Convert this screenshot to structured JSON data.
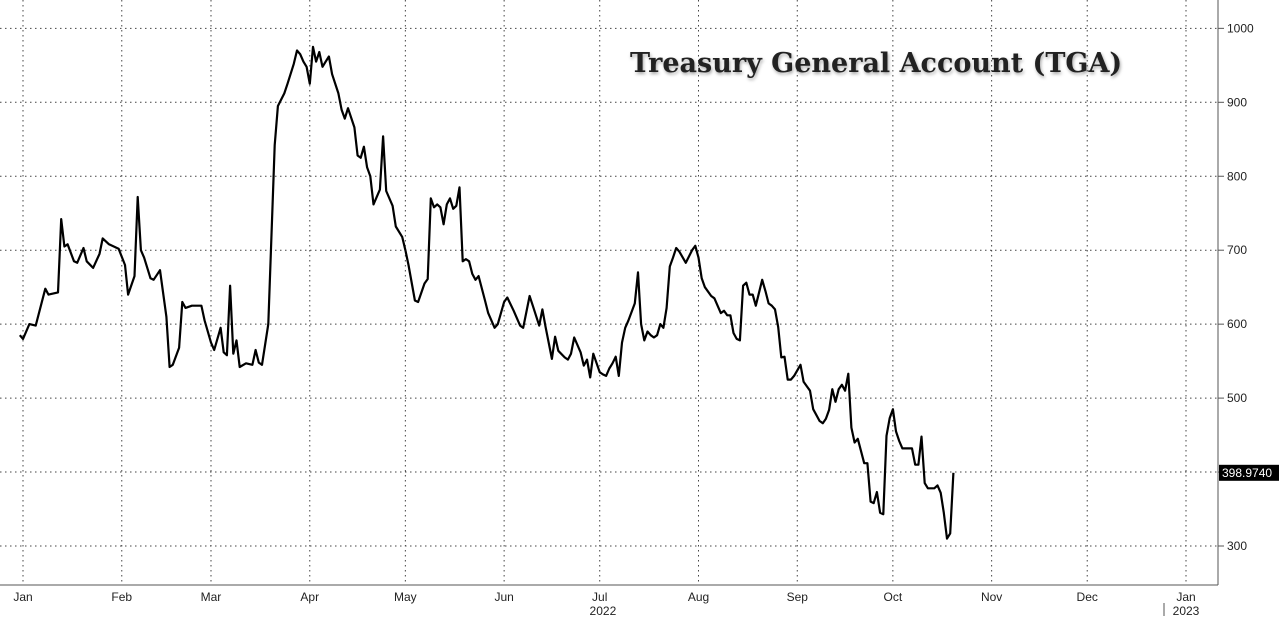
{
  "chart_data": {
    "type": "line",
    "title": "Treasury General Account (TGA)",
    "ylim": [
      250,
      1030
    ],
    "y_ticks": [
      300,
      400,
      500,
      600,
      700,
      800,
      900,
      1000
    ],
    "y_tick_labels": [
      "300",
      "400",
      "500",
      "600",
      "700",
      "800",
      "900",
      "1000"
    ],
    "grid": true,
    "x_ticks": [
      {
        "label": "Jan",
        "x": 0
      },
      {
        "label": "Feb",
        "x": 31
      },
      {
        "label": "Mar",
        "x": 59
      },
      {
        "label": "Apr",
        "x": 90
      },
      {
        "label": "May",
        "x": 120
      },
      {
        "label": "Jun",
        "x": 151
      },
      {
        "label": "Jul",
        "x": 181
      },
      {
        "label": "Aug",
        "x": 212
      },
      {
        "label": "Sep",
        "x": 243
      },
      {
        "label": "Oct",
        "x": 273
      },
      {
        "label": "Nov",
        "x": 304
      },
      {
        "label": "Dec",
        "x": 334
      },
      {
        "label": "Jan",
        "x": 365
      }
    ],
    "year_labels": [
      {
        "label": "2022",
        "x": 182
      },
      {
        "label": "2023",
        "x": 365
      }
    ],
    "last_value_label": "398.9740",
    "series": [
      {
        "color": "#000000",
        "points": [
          [
            -1,
            585
          ],
          [
            0,
            580
          ],
          [
            2,
            600
          ],
          [
            4,
            598
          ],
          [
            7,
            648
          ],
          [
            8,
            640
          ],
          [
            11,
            643
          ],
          [
            12,
            742
          ],
          [
            13,
            705
          ],
          [
            14,
            708
          ],
          [
            16,
            685
          ],
          [
            17,
            683
          ],
          [
            19,
            703
          ],
          [
            20,
            685
          ],
          [
            22,
            676
          ],
          [
            24,
            695
          ],
          [
            25,
            716
          ],
          [
            27,
            708
          ],
          [
            30,
            702
          ],
          [
            32,
            680
          ],
          [
            33,
            640
          ],
          [
            35,
            665
          ],
          [
            36,
            772
          ],
          [
            37,
            700
          ],
          [
            38,
            690
          ],
          [
            40,
            662
          ],
          [
            41,
            660
          ],
          [
            43,
            673
          ],
          [
            45,
            610
          ],
          [
            46,
            542
          ],
          [
            47,
            545
          ],
          [
            49,
            568
          ],
          [
            50,
            630
          ],
          [
            51,
            622
          ],
          [
            53,
            625
          ],
          [
            56,
            625
          ],
          [
            57,
            605
          ],
          [
            59,
            575
          ],
          [
            60,
            565
          ],
          [
            62,
            595
          ],
          [
            63,
            562
          ],
          [
            64,
            558
          ],
          [
            65,
            652
          ],
          [
            66,
            560
          ],
          [
            67,
            578
          ],
          [
            68,
            542
          ],
          [
            70,
            547
          ],
          [
            72,
            545
          ],
          [
            73,
            565
          ],
          [
            74,
            548
          ],
          [
            75,
            545
          ],
          [
            77,
            600
          ],
          [
            79,
            842
          ],
          [
            80,
            895
          ],
          [
            82,
            912
          ],
          [
            83,
            925
          ],
          [
            85,
            952
          ],
          [
            86,
            970
          ],
          [
            87,
            965
          ],
          [
            88,
            955
          ],
          [
            89,
            948
          ],
          [
            90,
            925
          ],
          [
            91,
            975
          ],
          [
            92,
            955
          ],
          [
            93,
            968
          ],
          [
            94,
            948
          ],
          [
            95,
            955
          ],
          [
            96,
            962
          ],
          [
            97,
            938
          ],
          [
            99,
            912
          ],
          [
            100,
            890
          ],
          [
            101,
            878
          ],
          [
            102,
            892
          ],
          [
            104,
            866
          ],
          [
            105,
            828
          ],
          [
            106,
            825
          ],
          [
            107,
            840
          ],
          [
            108,
            812
          ],
          [
            109,
            800
          ],
          [
            110,
            762
          ],
          [
            112,
            782
          ],
          [
            113,
            854
          ],
          [
            114,
            780
          ],
          [
            116,
            760
          ],
          [
            117,
            732
          ],
          [
            119,
            718
          ],
          [
            120,
            700
          ],
          [
            121,
            680
          ],
          [
            123,
            632
          ],
          [
            124,
            630
          ],
          [
            126,
            655
          ],
          [
            127,
            661
          ],
          [
            128,
            770
          ],
          [
            129,
            758
          ],
          [
            130,
            762
          ],
          [
            131,
            758
          ],
          [
            132,
            735
          ],
          [
            133,
            762
          ],
          [
            134,
            770
          ],
          [
            135,
            756
          ],
          [
            136,
            760
          ],
          [
            137,
            785
          ],
          [
            138,
            685
          ],
          [
            139,
            688
          ],
          [
            140,
            685
          ],
          [
            141,
            668
          ],
          [
            142,
            660
          ],
          [
            143,
            665
          ],
          [
            145,
            632
          ],
          [
            146,
            615
          ],
          [
            148,
            595
          ],
          [
            149,
            600
          ],
          [
            151,
            630
          ],
          [
            152,
            636
          ],
          [
            154,
            618
          ],
          [
            156,
            598
          ],
          [
            157,
            595
          ],
          [
            159,
            638
          ],
          [
            160,
            625
          ],
          [
            162,
            598
          ],
          [
            163,
            620
          ],
          [
            164,
            596
          ],
          [
            166,
            553
          ],
          [
            167,
            583
          ],
          [
            168,
            564
          ],
          [
            170,
            555
          ],
          [
            171,
            552
          ],
          [
            172,
            560
          ],
          [
            173,
            582
          ],
          [
            175,
            562
          ],
          [
            176,
            544
          ],
          [
            177,
            552
          ],
          [
            178,
            528
          ],
          [
            179,
            560
          ],
          [
            181,
            535
          ],
          [
            182,
            532
          ],
          [
            183,
            530
          ],
          [
            184,
            540
          ],
          [
            185,
            547
          ],
          [
            186,
            556
          ],
          [
            187,
            530
          ],
          [
            188,
            575
          ],
          [
            189,
            595
          ],
          [
            190,
            605
          ],
          [
            192,
            628
          ],
          [
            193,
            670
          ],
          [
            194,
            600
          ],
          [
            195,
            578
          ],
          [
            196,
            590
          ],
          [
            197,
            585
          ],
          [
            198,
            582
          ],
          [
            199,
            585
          ],
          [
            200,
            600
          ],
          [
            201,
            595
          ],
          [
            202,
            622
          ],
          [
            203,
            678
          ],
          [
            204,
            690
          ],
          [
            205,
            703
          ],
          [
            206,
            698
          ],
          [
            208,
            683
          ],
          [
            210,
            700
          ],
          [
            211,
            706
          ],
          [
            212,
            690
          ],
          [
            213,
            662
          ],
          [
            214,
            650
          ],
          [
            216,
            638
          ],
          [
            217,
            635
          ],
          [
            218,
            625
          ],
          [
            219,
            615
          ],
          [
            220,
            618
          ],
          [
            221,
            612
          ],
          [
            222,
            612
          ],
          [
            223,
            588
          ],
          [
            224,
            580
          ],
          [
            225,
            578
          ],
          [
            226,
            652
          ],
          [
            227,
            656
          ],
          [
            228,
            640
          ],
          [
            229,
            640
          ],
          [
            230,
            625
          ],
          [
            232,
            660
          ],
          [
            233,
            645
          ],
          [
            234,
            628
          ],
          [
            235,
            625
          ],
          [
            236,
            620
          ],
          [
            237,
            596
          ],
          [
            238,
            555
          ],
          [
            239,
            556
          ],
          [
            240,
            525
          ],
          [
            241,
            525
          ],
          [
            242,
            530
          ],
          [
            244,
            545
          ],
          [
            245,
            522
          ],
          [
            246,
            516
          ],
          [
            247,
            510
          ],
          [
            248,
            485
          ],
          [
            250,
            469
          ],
          [
            251,
            466
          ],
          [
            252,
            472
          ],
          [
            253,
            484
          ],
          [
            254,
            512
          ],
          [
            255,
            495
          ],
          [
            256,
            512
          ],
          [
            257,
            518
          ],
          [
            258,
            510
          ],
          [
            259,
            533
          ],
          [
            260,
            460
          ],
          [
            261,
            440
          ],
          [
            262,
            445
          ],
          [
            264,
            412
          ],
          [
            265,
            412
          ],
          [
            266,
            360
          ],
          [
            267,
            358
          ],
          [
            268,
            373
          ],
          [
            269,
            345
          ],
          [
            270,
            343
          ],
          [
            271,
            449
          ],
          [
            272,
            473
          ],
          [
            273,
            485
          ],
          [
            274,
            455
          ],
          [
            275,
            442
          ],
          [
            276,
            432
          ],
          [
            277,
            432
          ],
          [
            278,
            432
          ],
          [
            279,
            432
          ],
          [
            280,
            410
          ],
          [
            281,
            410
          ],
          [
            282,
            448
          ],
          [
            283,
            385
          ],
          [
            284,
            378
          ],
          [
            285,
            378
          ],
          [
            286,
            378
          ],
          [
            287,
            382
          ],
          [
            288,
            372
          ],
          [
            289,
            345
          ],
          [
            290,
            310
          ],
          [
            291,
            317
          ],
          [
            292,
            398.974
          ]
        ]
      }
    ]
  }
}
